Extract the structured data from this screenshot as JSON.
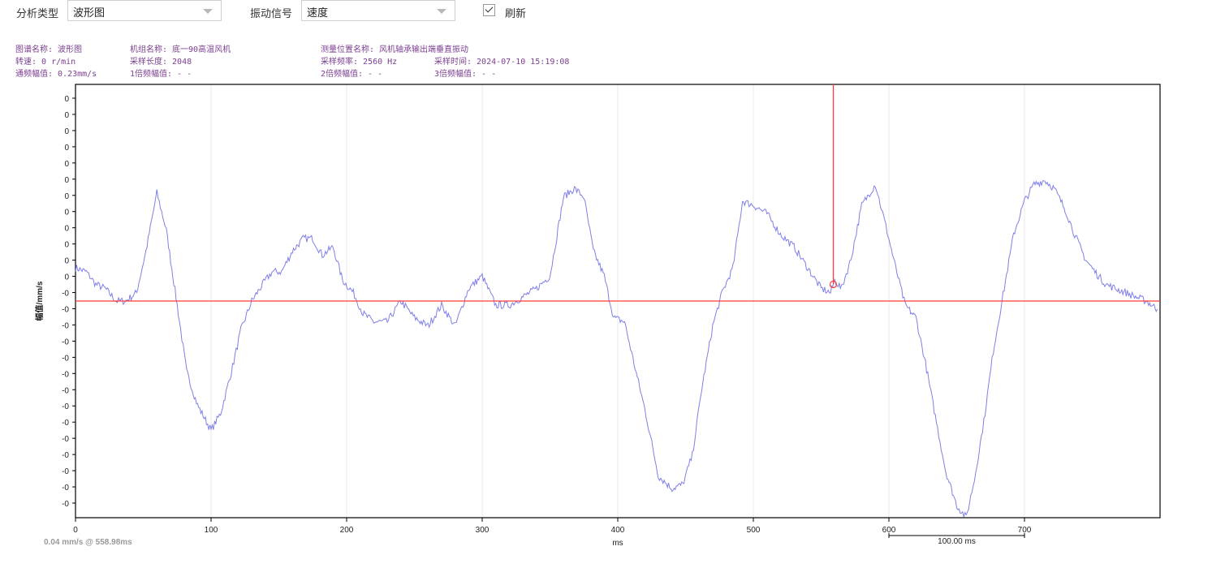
{
  "toolbar": {
    "analysis_type_label": "分析类型",
    "analysis_type_value": "波形图",
    "signal_label": "振动信号",
    "signal_value": "速度",
    "refresh_label": "刷新",
    "refresh_checked": true
  },
  "info": {
    "spectrum_name": "图谱名称: 波形图",
    "unit_name": "机组名称: 底一90高温风机",
    "point_name": "测量位置名称: 风机轴承输出端垂直振动",
    "speed": "转速: 0 r/min",
    "sample_length": "采样长度: 2048",
    "sample_freq": "采样频率: 2560 Hz",
    "sample_time": "采样时间: 2024-07-10 15:19:08",
    "overall": "通频幅值: 0.23mm/s",
    "x1": "1倍频幅值: - -",
    "x2": "2倍频幅值: - -",
    "x3": "3倍频幅值: - -"
  },
  "cursor": {
    "readout": "0.04 mm/s  @ 558.98ms",
    "x": 558.98,
    "y": 0.04
  },
  "scale_bar": {
    "label": "100.00 ms",
    "length": 100
  },
  "chart_data": {
    "type": "line",
    "xlabel": "ms",
    "ylabel": "幅值/mm/s",
    "xlim": [
      0,
      800
    ],
    "ylim": [
      -0.52,
      0.52
    ],
    "x_ticks": [
      "0",
      "100",
      "200",
      "300",
      "400",
      "500",
      "600",
      "700"
    ],
    "y_ticks": [
      "0",
      "0",
      "0",
      "0",
      "0",
      "0",
      "0",
      "0",
      "0",
      "0",
      "0",
      "0",
      "-0",
      "-0",
      "-0",
      "-0",
      "-0",
      "-0",
      "-0",
      "-0",
      "-0",
      "-0",
      "-0",
      "-0",
      "-0",
      "-0"
    ],
    "grid": "vertical",
    "series": [
      {
        "color": "#7f7fe8",
        "x": [
          0,
          8,
          15,
          22,
          30,
          37,
          45,
          52,
          60,
          67,
          75,
          82,
          90,
          100,
          107,
          115,
          122,
          130,
          138,
          145,
          152,
          160,
          168,
          175,
          182,
          190,
          197,
          205,
          212,
          220,
          230,
          240,
          250,
          260,
          270,
          280,
          290,
          300,
          310,
          320,
          330,
          340,
          350,
          360,
          368,
          375,
          382,
          390,
          397,
          405,
          412,
          420,
          430,
          440,
          448,
          455,
          462,
          470,
          477,
          485,
          492,
          500,
          510,
          520,
          530,
          540,
          550,
          557,
          560,
          565,
          572,
          580,
          590,
          597,
          605,
          612,
          620,
          627,
          635,
          642,
          650,
          657,
          663,
          670,
          677,
          685,
          692,
          700,
          707,
          715,
          722,
          730,
          737,
          745,
          752,
          760,
          767,
          775,
          782,
          790,
          798
        ],
        "y": [
          0.08,
          0.07,
          0.04,
          0.03,
          0.0,
          0.0,
          0.02,
          0.12,
          0.26,
          0.17,
          -0.01,
          -0.17,
          -0.25,
          -0.31,
          -0.27,
          -0.17,
          -0.07,
          0.0,
          0.04,
          0.07,
          0.07,
          0.12,
          0.15,
          0.15,
          0.11,
          0.13,
          0.05,
          0.02,
          -0.03,
          -0.05,
          -0.05,
          0.0,
          -0.04,
          -0.06,
          -0.01,
          -0.06,
          0.03,
          0.06,
          -0.01,
          -0.01,
          0.01,
          0.03,
          0.06,
          0.25,
          0.27,
          0.25,
          0.12,
          0.06,
          -0.04,
          -0.05,
          -0.15,
          -0.26,
          -0.42,
          -0.45,
          -0.44,
          -0.37,
          -0.21,
          -0.06,
          0.02,
          0.08,
          0.24,
          0.23,
          0.21,
          0.16,
          0.13,
          0.08,
          0.03,
          0.02,
          0.05,
          0.03,
          0.1,
          0.23,
          0.28,
          0.19,
          0.08,
          -0.01,
          -0.04,
          -0.15,
          -0.29,
          -0.41,
          -0.49,
          -0.52,
          -0.43,
          -0.29,
          -0.12,
          0.03,
          0.16,
          0.24,
          0.28,
          0.29,
          0.27,
          0.22,
          0.16,
          0.1,
          0.07,
          0.04,
          0.03,
          0.02,
          0.01,
          0.0,
          -0.02
        ]
      }
    ],
    "cursor_color": "#ff3b3b"
  }
}
